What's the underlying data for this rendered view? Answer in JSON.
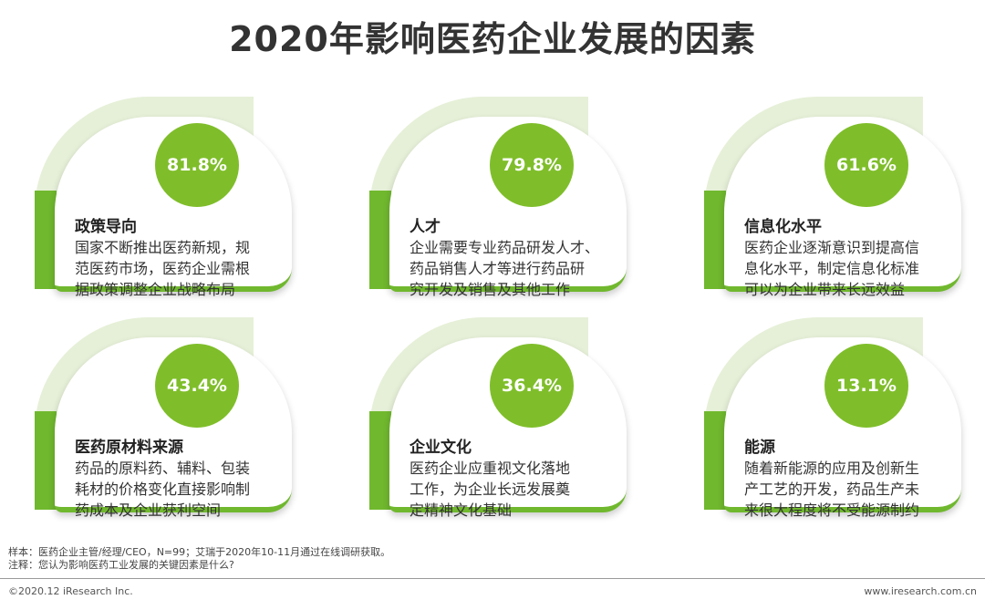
{
  "title": "2020年影响医药企业发展的因素",
  "colors": {
    "accent": "#70b82e",
    "circle": "#7fbe2a",
    "arc": "#e6f0d8"
  },
  "cards": [
    {
      "percent": "81.8%",
      "title": "政策导向",
      "lines": [
        "国家不断推出医药新规，规",
        "范医药市场，医药企业需根",
        "据政策调整企业战略布局"
      ]
    },
    {
      "percent": "79.8%",
      "title": "人才",
      "lines": [
        "企业需要专业药品研发人才、",
        "药品销售人才等进行药品研",
        "究开发及销售及其他工作"
      ]
    },
    {
      "percent": "61.6%",
      "title": "信息化水平",
      "lines": [
        "医药企业逐渐意识到提高信",
        "息化水平，制定信息化标准",
        "可以为企业带来长远效益"
      ]
    },
    {
      "percent": "43.4%",
      "title": "医药原材料来源",
      "lines": [
        "药品的原料药、辅料、包装",
        "耗材的价格变化直接影响制",
        "药成本及企业获利空间"
      ]
    },
    {
      "percent": "36.4%",
      "title": "企业文化",
      "lines": [
        "医药企业应重视文化落地",
        "工作，为企业长远发展奠",
        "定精神文化基础"
      ]
    },
    {
      "percent": "13.1%",
      "title": "能源",
      "lines": [
        "随着新能源的应用及创新生",
        "产工艺的开发，药品生产未",
        "来很大程度将不受能源制约"
      ]
    }
  ],
  "notes": {
    "sample": "样本：医药企业主管/经理/CEO，N=99；艾瑞于2020年10-11月通过在线调研获取。",
    "note": "注释：您认为影响医药工业发展的关键因素是什么?"
  },
  "footer": {
    "copyright": "©2020.12 iResearch Inc.",
    "website": "www.iresearch.com.cn"
  }
}
